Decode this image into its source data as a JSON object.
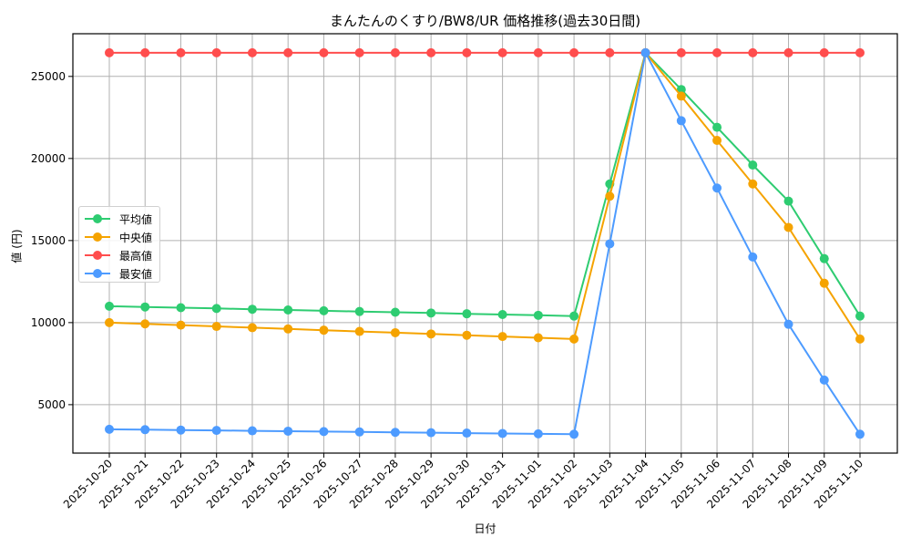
{
  "chart_data": {
    "type": "line",
    "title": "まんたんのくすり/BW8/UR 価格推移(過去30日間)",
    "xlabel": "日付",
    "ylabel": "値 (円)",
    "ylim": [
      2050,
      27600
    ],
    "yticks": [
      5000,
      10000,
      15000,
      20000,
      25000
    ],
    "grid": true,
    "legend_position": "center left",
    "x": [
      "2025-10-20",
      "2025-10-21",
      "2025-10-22",
      "2025-10-23",
      "2025-10-24",
      "2025-10-25",
      "2025-10-26",
      "2025-10-27",
      "2025-10-28",
      "2025-10-29",
      "2025-10-30",
      "2025-10-31",
      "2025-11-01",
      "2025-11-02",
      "2025-11-03",
      "2025-11-04",
      "2025-11-05",
      "2025-11-06",
      "2025-11-07",
      "2025-11-08",
      "2025-11-09",
      "2025-11-10"
    ],
    "series": [
      {
        "name": "平均値",
        "color": "#2ecc71",
        "values": [
          11000,
          10954,
          10908,
          10862,
          10815,
          10769,
          10723,
          10677,
          10631,
          10585,
          10538,
          10492,
          10446,
          10400,
          18450,
          26440,
          24200,
          21900,
          19600,
          17400,
          13900,
          10400
        ]
      },
      {
        "name": "中央値",
        "color": "#f5a300",
        "values": [
          10000,
          9923,
          9846,
          9769,
          9692,
          9615,
          9538,
          9462,
          9385,
          9308,
          9231,
          9154,
          9077,
          9000,
          17700,
          26440,
          23800,
          21100,
          18450,
          15800,
          12400,
          9000
        ]
      },
      {
        "name": "最高値",
        "color": "#ff4d4d",
        "values": [
          26440,
          26440,
          26440,
          26440,
          26440,
          26440,
          26440,
          26440,
          26440,
          26440,
          26440,
          26440,
          26440,
          26440,
          26440,
          26440,
          26440,
          26440,
          26440,
          26440,
          26440,
          26440
        ]
      },
      {
        "name": "最安値",
        "color": "#4d9bff",
        "values": [
          3500,
          3477,
          3454,
          3431,
          3408,
          3385,
          3362,
          3338,
          3315,
          3292,
          3269,
          3246,
          3223,
          3200,
          14800,
          26440,
          22300,
          18200,
          14000,
          9900,
          6500,
          3200
        ]
      }
    ]
  },
  "legend": {
    "items": [
      {
        "label": "平均値",
        "color": "#2ecc71"
      },
      {
        "label": "中央値",
        "color": "#f5a300"
      },
      {
        "label": "最高値",
        "color": "#ff4d4d"
      },
      {
        "label": "最安値",
        "color": "#4d9bff"
      }
    ]
  }
}
